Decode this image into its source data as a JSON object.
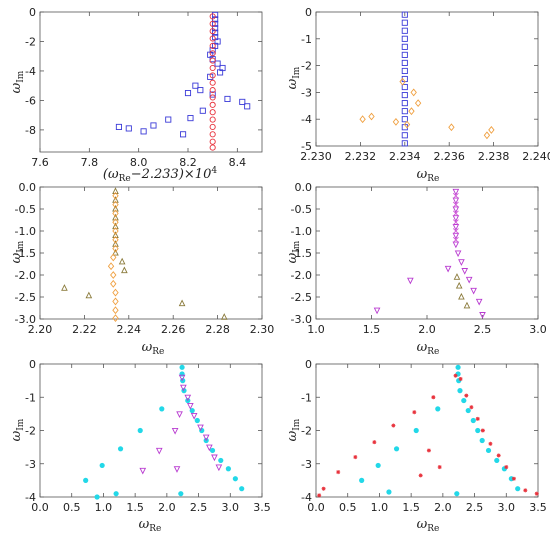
{
  "colors": {
    "blue": "#3b3bd8",
    "red": "#e8323c",
    "orange": "#f0a040",
    "olive": "#8a7a3a",
    "magenta": "#d05ad8",
    "violet": "#b83ad0",
    "cyan": "#22d8e8",
    "slate": "#4a6a88",
    "axis": "#555555"
  },
  "chart_data": [
    {
      "type": "scatter",
      "xlabel": "(ω_Re−2.233)×10^4",
      "ylabel": "ω_Im",
      "xlim": [
        7.6,
        8.5
      ],
      "ylim": [
        -9.5,
        0
      ],
      "xticks": [
        "7.6",
        "7.8",
        "8.0",
        "8.2",
        "8.4"
      ],
      "yticks": [
        "0",
        "-2",
        "-4",
        "-6",
        "-8"
      ],
      "series": [
        {
          "marker": "square",
          "color": "blue",
          "points": [
            [
              8.31,
              -0.2
            ],
            [
              8.31,
              -0.5
            ],
            [
              8.31,
              -0.8
            ],
            [
              8.31,
              -1.1
            ],
            [
              8.31,
              -1.4
            ],
            [
              8.31,
              -1.7
            ],
            [
              8.32,
              -2.0
            ],
            [
              8.31,
              -2.3
            ],
            [
              8.3,
              -2.6
            ],
            [
              8.29,
              -2.9
            ],
            [
              8.3,
              -3.2
            ],
            [
              8.32,
              -3.5
            ],
            [
              8.34,
              -3.8
            ],
            [
              8.33,
              -4.1
            ],
            [
              8.29,
              -4.4
            ],
            [
              8.23,
              -5.0
            ],
            [
              8.2,
              -5.5
            ],
            [
              8.25,
              -5.3
            ],
            [
              8.3,
              -5.6
            ],
            [
              8.36,
              -5.9
            ],
            [
              8.42,
              -6.1
            ],
            [
              8.44,
              -6.4
            ],
            [
              8.26,
              -6.7
            ],
            [
              8.21,
              -7.2
            ],
            [
              8.12,
              -7.3
            ],
            [
              8.06,
              -7.7
            ],
            [
              7.96,
              -7.9
            ],
            [
              8.02,
              -8.1
            ],
            [
              8.18,
              -8.3
            ],
            [
              7.92,
              -7.8
            ]
          ]
        },
        {
          "marker": "circle",
          "color": "red",
          "points": [
            [
              8.3,
              -0.3
            ],
            [
              8.3,
              -0.8
            ],
            [
              8.3,
              -1.3
            ],
            [
              8.3,
              -1.8
            ],
            [
              8.3,
              -2.3
            ],
            [
              8.3,
              -2.8
            ],
            [
              8.3,
              -3.3
            ],
            [
              8.3,
              -3.8
            ],
            [
              8.3,
              -4.3
            ],
            [
              8.3,
              -4.8
            ],
            [
              8.3,
              -5.3
            ],
            [
              8.3,
              -5.8
            ],
            [
              8.3,
              -6.3
            ],
            [
              8.3,
              -6.8
            ],
            [
              8.3,
              -7.3
            ],
            [
              8.3,
              -7.8
            ],
            [
              8.3,
              -8.3
            ],
            [
              8.3,
              -8.8
            ],
            [
              8.3,
              -9.2
            ]
          ]
        }
      ]
    },
    {
      "type": "scatter",
      "xlabel": "ω_Re",
      "ylabel": "ω_Im",
      "xlim": [
        2.23,
        2.24
      ],
      "ylim": [
        -5,
        0
      ],
      "xticks": [
        "2.230",
        "2.232",
        "2.234",
        "2.236",
        "2.238",
        "2.240"
      ],
      "yticks": [
        "0",
        "-1",
        "-2",
        "-3",
        "-4",
        "-5"
      ],
      "series": [
        {
          "marker": "square",
          "color": "blue",
          "points": [
            [
              2.234,
              -0.1
            ],
            [
              2.234,
              -0.4
            ],
            [
              2.234,
              -0.7
            ],
            [
              2.234,
              -1.0
            ],
            [
              2.234,
              -1.3
            ],
            [
              2.234,
              -1.6
            ],
            [
              2.234,
              -1.9
            ],
            [
              2.234,
              -2.2
            ],
            [
              2.234,
              -2.5
            ],
            [
              2.234,
              -2.8
            ],
            [
              2.234,
              -3.1
            ],
            [
              2.234,
              -3.4
            ],
            [
              2.234,
              -3.7
            ],
            [
              2.234,
              -4.0
            ],
            [
              2.234,
              -4.3
            ],
            [
              2.234,
              -4.6
            ],
            [
              2.234,
              -4.9
            ]
          ]
        },
        {
          "marker": "diamond",
          "color": "orange",
          "points": [
            [
              2.2339,
              -2.6
            ],
            [
              2.2344,
              -3.0
            ],
            [
              2.2346,
              -3.4
            ],
            [
              2.2343,
              -3.7
            ],
            [
              2.2336,
              -4.1
            ],
            [
              2.2325,
              -3.9
            ],
            [
              2.2321,
              -4.0
            ],
            [
              2.2361,
              -4.3
            ],
            [
              2.2377,
              -4.6
            ],
            [
              2.2379,
              -4.4
            ],
            [
              2.2341,
              -4.2
            ]
          ]
        }
      ]
    },
    {
      "type": "scatter",
      "xlabel": "ω_Re",
      "ylabel": "ω_Im",
      "xlim": [
        2.2,
        2.3
      ],
      "ylim": [
        -3,
        0
      ],
      "xticks": [
        "2.20",
        "2.22",
        "2.24",
        "2.26",
        "2.28",
        "2.30"
      ],
      "yticks": [
        "0.0",
        "-0.5",
        "-1.0",
        "-1.5",
        "-2.0",
        "-2.5",
        "-3.0"
      ],
      "series": [
        {
          "marker": "triangle-up",
          "color": "olive",
          "points": [
            [
              2.234,
              -0.1
            ],
            [
              2.234,
              -0.3
            ],
            [
              2.234,
              -0.5
            ],
            [
              2.234,
              -0.7
            ],
            [
              2.234,
              -0.9
            ],
            [
              2.234,
              -1.1
            ],
            [
              2.234,
              -1.3
            ],
            [
              2.234,
              -1.5
            ],
            [
              2.237,
              -1.7
            ],
            [
              2.238,
              -1.9
            ],
            [
              2.211,
              -2.3
            ],
            [
              2.222,
              -2.47
            ],
            [
              2.264,
              -2.65
            ],
            [
              2.283,
              -2.96
            ]
          ]
        },
        {
          "marker": "diamond",
          "color": "orange",
          "points": [
            [
              2.234,
              -0.2
            ],
            [
              2.234,
              -0.4
            ],
            [
              2.234,
              -0.6
            ],
            [
              2.234,
              -0.8
            ],
            [
              2.234,
              -1.0
            ],
            [
              2.234,
              -1.2
            ],
            [
              2.234,
              -1.4
            ],
            [
              2.233,
              -1.6
            ],
            [
              2.232,
              -1.8
            ],
            [
              2.233,
              -2.0
            ],
            [
              2.233,
              -2.2
            ],
            [
              2.234,
              -2.4
            ],
            [
              2.234,
              -2.6
            ],
            [
              2.234,
              -2.8
            ],
            [
              2.234,
              -2.98
            ]
          ]
        }
      ]
    },
    {
      "type": "scatter",
      "xlabel": "ω_Re",
      "ylabel": "ω_Im",
      "xlim": [
        1.0,
        3.0
      ],
      "ylim": [
        -3,
        0
      ],
      "xticks": [
        "1.0",
        "1.5",
        "2.0",
        "2.5",
        "3.0"
      ],
      "yticks": [
        "0.0",
        "-0.5",
        "-1.0",
        "-1.5",
        "-2.0",
        "-2.5",
        "-3.0"
      ],
      "series": [
        {
          "marker": "triangle-down",
          "color": "violet",
          "points": [
            [
              2.26,
              -0.1
            ],
            [
              2.26,
              -0.3
            ],
            [
              2.26,
              -0.5
            ],
            [
              2.26,
              -0.7
            ],
            [
              2.26,
              -0.9
            ],
            [
              2.26,
              -1.1
            ],
            [
              2.26,
              -1.3
            ],
            [
              2.28,
              -1.5
            ],
            [
              2.31,
              -1.7
            ],
            [
              2.34,
              -1.9
            ],
            [
              2.38,
              -2.1
            ],
            [
              2.42,
              -2.35
            ],
            [
              2.47,
              -2.6
            ],
            [
              2.5,
              -2.9
            ],
            [
              1.85,
              -2.12
            ],
            [
              1.55,
              -2.8
            ],
            [
              2.19,
              -1.85
            ]
          ]
        },
        {
          "marker": "cross",
          "color": "magenta",
          "points": [
            [
              2.26,
              -0.2
            ],
            [
              2.26,
              -0.4
            ],
            [
              2.26,
              -0.6
            ],
            [
              2.26,
              -0.8
            ],
            [
              2.26,
              -1.0
            ],
            [
              2.26,
              -1.2
            ]
          ]
        },
        {
          "marker": "triangle-up",
          "color": "olive",
          "points": [
            [
              2.27,
              -2.05
            ],
            [
              2.29,
              -2.25
            ],
            [
              2.31,
              -2.5
            ],
            [
              2.36,
              -2.7
            ]
          ]
        }
      ]
    },
    {
      "type": "scatter",
      "xlabel": "ω_Re",
      "ylabel": "ω_Im",
      "xlim": [
        0.0,
        3.5
      ],
      "ylim": [
        -4,
        0
      ],
      "xticks": [
        "0.0",
        "0.5",
        "1.0",
        "1.5",
        "2.0",
        "2.5",
        "3.0",
        "3.5"
      ],
      "yticks": [
        "0",
        "-1",
        "-2",
        "-3",
        "-4"
      ],
      "series": [
        {
          "marker": "disk",
          "color": "cyan",
          "points": [
            [
              2.24,
              -0.1
            ],
            [
              2.24,
              -0.3
            ],
            [
              2.25,
              -0.5
            ],
            [
              2.27,
              -0.8
            ],
            [
              2.33,
              -1.1
            ],
            [
              2.4,
              -1.4
            ],
            [
              2.48,
              -1.7
            ],
            [
              2.55,
              -2.0
            ],
            [
              2.62,
              -2.3
            ],
            [
              2.72,
              -2.6
            ],
            [
              2.85,
              -2.9
            ],
            [
              2.97,
              -3.15
            ],
            [
              3.08,
              -3.45
            ],
            [
              3.18,
              -3.75
            ],
            [
              1.92,
              -1.35
            ],
            [
              1.58,
              -2.0
            ],
            [
              1.27,
              -2.55
            ],
            [
              0.98,
              -3.05
            ],
            [
              0.72,
              -3.5
            ],
            [
              1.2,
              -3.9
            ],
            [
              2.22,
              -3.9
            ],
            [
              0.9,
              -4.0
            ]
          ]
        },
        {
          "marker": "triangle-down",
          "color": "violet",
          "points": [
            [
              2.24,
              -0.4
            ],
            [
              2.26,
              -0.7
            ],
            [
              2.33,
              -1.0
            ],
            [
              2.37,
              -1.25
            ],
            [
              2.2,
              -1.5
            ],
            [
              2.43,
              -1.55
            ],
            [
              2.53,
              -1.9
            ],
            [
              2.13,
              -2.0
            ],
            [
              2.62,
              -2.2
            ],
            [
              2.67,
              -2.5
            ],
            [
              1.88,
              -2.6
            ],
            [
              2.75,
              -2.8
            ],
            [
              2.82,
              -3.1
            ],
            [
              1.62,
              -3.2
            ],
            [
              2.16,
              -3.15
            ]
          ]
        }
      ]
    },
    {
      "type": "scatter",
      "xlabel": "ω_Re",
      "ylabel": "ω_Im",
      "xlim": [
        0.0,
        3.5
      ],
      "ylim": [
        -4,
        0
      ],
      "xticks": [
        "0.0",
        "0.5",
        "1.0",
        "1.5",
        "2.0",
        "2.5",
        "3.0",
        "3.5"
      ],
      "yticks": [
        "0",
        "-1",
        "-2",
        "-3",
        "-4"
      ],
      "series": [
        {
          "marker": "disk",
          "color": "cyan",
          "points": [
            [
              2.24,
              -0.1
            ],
            [
              2.24,
              -0.3
            ],
            [
              2.25,
              -0.5
            ],
            [
              2.27,
              -0.8
            ],
            [
              2.33,
              -1.1
            ],
            [
              2.4,
              -1.4
            ],
            [
              2.48,
              -1.7
            ],
            [
              2.55,
              -2.0
            ],
            [
              2.62,
              -2.3
            ],
            [
              2.72,
              -2.6
            ],
            [
              2.85,
              -2.9
            ],
            [
              2.97,
              -3.15
            ],
            [
              3.08,
              -3.45
            ],
            [
              3.18,
              -3.75
            ],
            [
              1.92,
              -1.35
            ],
            [
              1.58,
              -2.0
            ],
            [
              1.27,
              -2.55
            ],
            [
              0.98,
              -3.05
            ],
            [
              0.72,
              -3.5
            ],
            [
              2.22,
              -3.9
            ],
            [
              1.15,
              -3.85
            ]
          ]
        },
        {
          "marker": "star",
          "color": "red",
          "points": [
            [
              2.2,
              -0.35
            ],
            [
              2.28,
              -0.45
            ],
            [
              1.85,
              -1.0
            ],
            [
              2.37,
              -0.95
            ],
            [
              1.55,
              -1.45
            ],
            [
              2.45,
              -1.3
            ],
            [
              1.22,
              -1.85
            ],
            [
              2.55,
              -1.65
            ],
            [
              0.92,
              -2.35
            ],
            [
              2.63,
              -2.0
            ],
            [
              0.62,
              -2.8
            ],
            [
              2.75,
              -2.4
            ],
            [
              0.35,
              -3.25
            ],
            [
              2.88,
              -2.75
            ],
            [
              0.12,
              -3.75
            ],
            [
              3.0,
              -3.1
            ],
            [
              3.12,
              -3.45
            ],
            [
              3.3,
              -3.8
            ],
            [
              3.48,
              -3.9
            ],
            [
              1.78,
              -2.6
            ],
            [
              1.95,
              -3.1
            ],
            [
              1.65,
              -3.35
            ],
            [
              0.05,
              -3.95
            ]
          ]
        }
      ]
    }
  ]
}
